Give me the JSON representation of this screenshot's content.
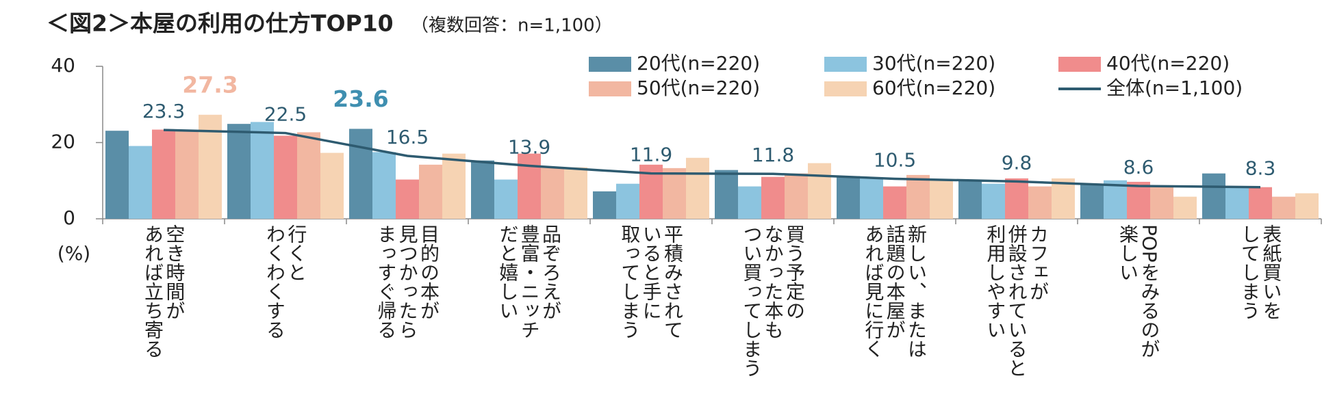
{
  "chart_data": {
    "type": "bar",
    "title": "＜図2＞本屋の利用の仕方TOP10",
    "subtitle": "（複数回答：n=1,100）",
    "y_label": "(%)",
    "categories": [
      "空き時間が\nあれば立ち寄る",
      "行くと\nわくわくする",
      "目的の本が\n見つかったら\nまっすぐ帰る",
      "品ぞろえが\n豊富・ニッチ\nだと嬉しい",
      "平積みされて\nいると手に\n取ってしまう",
      "買う予定の\nなかった本も\nつい買ってしまう",
      "新しい、または\n話題の本屋が\nあれば見に行く",
      "カフェが\n併設されていると\n利用しやすい",
      "POPをみるのが\n楽しい",
      "表紙買いを\nしてしまう"
    ],
    "series": [
      {
        "name": "20代(n=220)",
        "color": "#5a8ea7",
        "values": [
          23.1,
          24.9,
          23.6,
          15.3,
          7.2,
          12.8,
          11.2,
          10.3,
          9.2,
          11.9
        ]
      },
      {
        "name": "30代(n=220)",
        "color": "#8cc4df",
        "values": [
          19.1,
          25.4,
          17.5,
          10.3,
          9.2,
          8.5,
          10.8,
          9.2,
          10.1,
          8.3
        ]
      },
      {
        "name": "40代(n=220)",
        "color": "#f08c8c",
        "values": [
          23.4,
          21.8,
          10.3,
          17.1,
          14.2,
          11.0,
          8.5,
          10.6,
          9.7,
          8.3
        ]
      },
      {
        "name": "50代(n=220)",
        "color": "#f2b7a1",
        "values": [
          23.0,
          22.7,
          14.2,
          13.5,
          13.3,
          11.9,
          11.5,
          8.5,
          8.3,
          5.8
        ]
      },
      {
        "name": "60代(n=220)",
        "color": "#f6d3b3",
        "values": [
          27.3,
          17.3,
          17.1,
          13.5,
          16.0,
          14.6,
          10.3,
          10.6,
          5.8,
          6.7
        ]
      },
      {
        "name": "全体(n=1,100)",
        "color": "#2e5b70",
        "type": "line",
        "values": [
          23.3,
          22.5,
          16.5,
          13.9,
          11.9,
          11.8,
          10.5,
          9.8,
          8.6,
          8.3
        ]
      }
    ],
    "annotations": [
      {
        "text": "27.3",
        "series_index": 4,
        "category_index": 0,
        "color": "#f2b7a1"
      },
      {
        "text": "23.6",
        "series_index": 0,
        "category_index": 2,
        "color": "#3f8fb0"
      }
    ],
    "ylim": [
      0,
      40
    ],
    "yticks": [
      0,
      20,
      40
    ],
    "grid": false
  }
}
